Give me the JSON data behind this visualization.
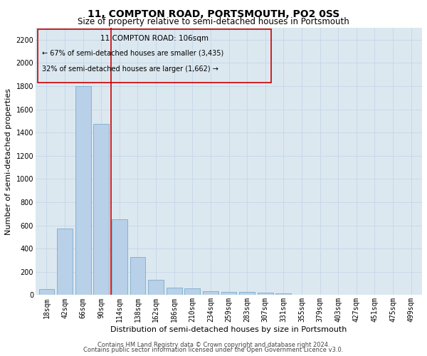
{
  "title1": "11, COMPTON ROAD, PORTSMOUTH, PO2 0SS",
  "title2": "Size of property relative to semi-detached houses in Portsmouth",
  "xlabel": "Distribution of semi-detached houses by size in Portsmouth",
  "ylabel": "Number of semi-detached properties",
  "footer1": "Contains HM Land Registry data © Crown copyright and database right 2024.",
  "footer2": "Contains public sector information licensed under the Open Government Licence v3.0.",
  "annotation_line1": "11 COMPTON ROAD: 106sqm",
  "annotation_line2": "← 67% of semi-detached houses are smaller (3,435)",
  "annotation_line3": "32% of semi-detached houses are larger (1,662) →",
  "bar_labels": [
    "18sqm",
    "42sqm",
    "66sqm",
    "90sqm",
    "114sqm",
    "138sqm",
    "162sqm",
    "186sqm",
    "210sqm",
    "234sqm",
    "259sqm",
    "283sqm",
    "307sqm",
    "331sqm",
    "355sqm",
    "379sqm",
    "403sqm",
    "427sqm",
    "451sqm",
    "475sqm",
    "499sqm"
  ],
  "bar_values": [
    50,
    575,
    1800,
    1475,
    650,
    330,
    130,
    65,
    60,
    35,
    25,
    30,
    20,
    15,
    5,
    3,
    2,
    2,
    1,
    1,
    0
  ],
  "bar_color": "#b8d0e8",
  "bar_edge_color": "#6ba3c8",
  "grid_color": "#c8d8ea",
  "bg_color": "#dce8f0",
  "vline_color": "#cc0000",
  "annotation_box_color": "#cc0000",
  "ylim": [
    0,
    2300
  ],
  "yticks": [
    0,
    200,
    400,
    600,
    800,
    1000,
    1200,
    1400,
    1600,
    1800,
    2000,
    2200
  ],
  "title_fontsize": 10,
  "subtitle_fontsize": 8.5,
  "tick_fontsize": 7,
  "ylabel_fontsize": 8,
  "xlabel_fontsize": 8,
  "footer_fontsize": 6,
  "ann_fontsize1": 7.5,
  "ann_fontsize2": 7
}
